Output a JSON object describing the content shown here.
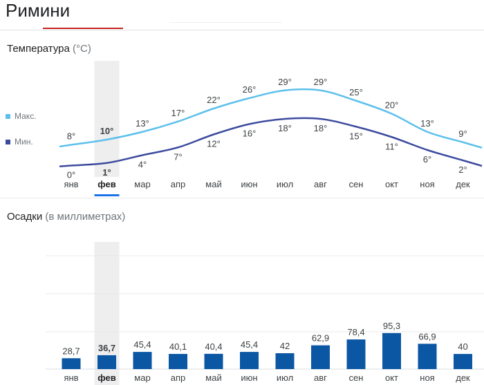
{
  "header": {
    "city": "Римини"
  },
  "temperature": {
    "title": "Температура",
    "unit": "(°C)",
    "legend_max": "Макс.",
    "legend_min": "Мин.",
    "selected_month": "фев"
  },
  "precipitation": {
    "title": "Осадки",
    "unit": "(в миллиметрах)"
  },
  "colors": {
    "max_line": "#5bc0eb",
    "min_line": "#3c4a9e",
    "bar": "#0b57a4",
    "highlight": "#e8e8e8",
    "accent_tab": "#c5221f",
    "selected_underline": "#1a73e8"
  },
  "chart_data": [
    {
      "type": "line",
      "title": "Температура (°C)",
      "categories": [
        "янв",
        "фев",
        "мар",
        "апр",
        "май",
        "июн",
        "июл",
        "авг",
        "сен",
        "окт",
        "ноя",
        "дек"
      ],
      "series": [
        {
          "name": "Макс.",
          "values": [
            8,
            10,
            13,
            17,
            22,
            26,
            29,
            29,
            25,
            20,
            13,
            9
          ],
          "labels": [
            "8°",
            "10°",
            "13°",
            "17°",
            "22°",
            "26°",
            "29°",
            "29°",
            "25°",
            "20°",
            "13°",
            "9°"
          ]
        },
        {
          "name": "Мин.",
          "values": [
            0,
            1,
            4,
            7,
            12,
            16,
            18,
            18,
            15,
            11,
            6,
            2
          ],
          "labels": [
            "0°",
            "1°",
            "4°",
            "7°",
            "12°",
            "16°",
            "18°",
            "18°",
            "15°",
            "11°",
            "6°",
            "2°"
          ]
        }
      ],
      "highlighted_category": "фев"
    },
    {
      "type": "bar",
      "title": "Осадки (в миллиметрах)",
      "categories": [
        "янв",
        "фев",
        "мар",
        "апр",
        "май",
        "июн",
        "июл",
        "авг",
        "сен",
        "окт",
        "ноя",
        "дек"
      ],
      "values": [
        28.7,
        36.7,
        45.4,
        40.1,
        40.4,
        45.4,
        42,
        62.9,
        78.4,
        95.3,
        66.9,
        40
      ],
      "value_labels": [
        "28,7",
        "36,7",
        "45,4",
        "40,1",
        "40,4",
        "45,4",
        "42",
        "62,9",
        "78,4",
        "95,3",
        "66,9",
        "40"
      ],
      "highlighted_category": "фев",
      "grid": true
    }
  ]
}
